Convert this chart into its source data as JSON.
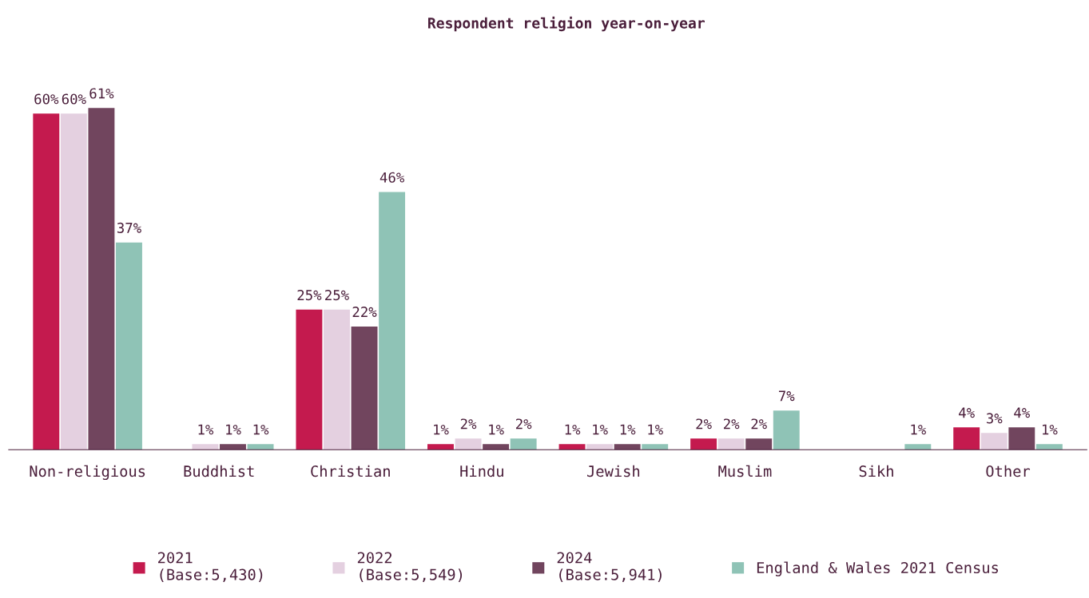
{
  "chart_data": {
    "type": "bar",
    "title": "Respondent religion year-on-year",
    "categories": [
      "Non-religious",
      "Buddhist",
      "Christian",
      "Hindu",
      "Jewish",
      "Muslim",
      "Sikh",
      "Other"
    ],
    "series": [
      {
        "name": "2021\n(Base:5,430)",
        "color": "#c41a4e",
        "values": [
          60,
          null,
          25,
          1,
          1,
          2,
          null,
          4
        ],
        "value_labels": [
          "60%",
          null,
          "25%",
          "1%",
          "1%",
          "2%",
          null,
          "4%"
        ]
      },
      {
        "name": "2022\n(Base:5,549)",
        "color": "#e4d0e0",
        "values": [
          60,
          1,
          25,
          2,
          1,
          2,
          null,
          3
        ],
        "value_labels": [
          "60%",
          "1%",
          "25%",
          "2%",
          "1%",
          "2%",
          null,
          "3%"
        ]
      },
      {
        "name": "2024\n(Base:5,941)",
        "color": "#71455e",
        "values": [
          61,
          1,
          22,
          1,
          1,
          2,
          null,
          4
        ],
        "value_labels": [
          "61%",
          "1%",
          "22%",
          "1%",
          "1%",
          "2%",
          null,
          "4%"
        ]
      },
      {
        "name": "England & Wales 2021 Census",
        "color": "#8fc3b6",
        "values": [
          37,
          1,
          46,
          2,
          1,
          7,
          1,
          1
        ],
        "value_labels": [
          "37%",
          "1%",
          "46%",
          "2%",
          "1%",
          "7%",
          "1%",
          "1%"
        ]
      }
    ],
    "legend": "bottom",
    "grid": false
  }
}
